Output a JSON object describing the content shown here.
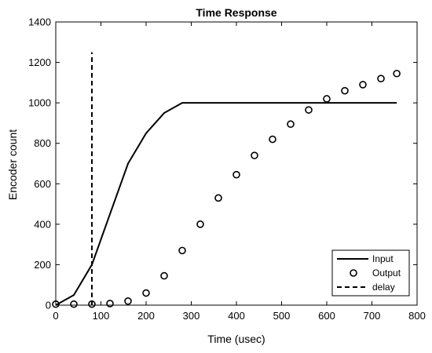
{
  "chart_data": {
    "type": "line",
    "title": "Time Response",
    "xlabel": "Time (usec)",
    "ylabel": "Encoder count",
    "xlim": [
      0,
      800
    ],
    "ylim": [
      0,
      1400
    ],
    "xticks": [
      0,
      100,
      200,
      300,
      400,
      500,
      600,
      700,
      800
    ],
    "yticks": [
      0,
      200,
      400,
      600,
      800,
      1000,
      1200,
      1400
    ],
    "grid": false,
    "legend_position": "bottom-right",
    "series": [
      {
        "name": "Input",
        "style": "solid-line",
        "color": "#000000",
        "x": [
          0,
          40,
          80,
          120,
          160,
          200,
          240,
          280,
          320,
          360,
          400,
          440,
          480,
          520,
          560,
          600,
          640,
          680,
          720,
          755
        ],
        "y": [
          0,
          50,
          200,
          450,
          700,
          850,
          950,
          1000,
          1000,
          1000,
          1000,
          1000,
          1000,
          1000,
          1000,
          1000,
          1000,
          1000,
          1000,
          1000
        ]
      },
      {
        "name": "Output",
        "style": "circle-markers",
        "color": "#000000",
        "x": [
          0,
          40,
          80,
          120,
          160,
          200,
          240,
          280,
          320,
          360,
          400,
          440,
          480,
          520,
          560,
          600,
          640,
          680,
          720,
          755
        ],
        "y": [
          5,
          5,
          5,
          8,
          20,
          60,
          145,
          270,
          400,
          530,
          645,
          740,
          820,
          895,
          965,
          1020,
          1060,
          1090,
          1120,
          1145
        ]
      },
      {
        "name": "delay",
        "style": "dashed-line",
        "color": "#000000",
        "x": [
          80,
          80
        ],
        "y": [
          0,
          1250
        ]
      }
    ]
  }
}
